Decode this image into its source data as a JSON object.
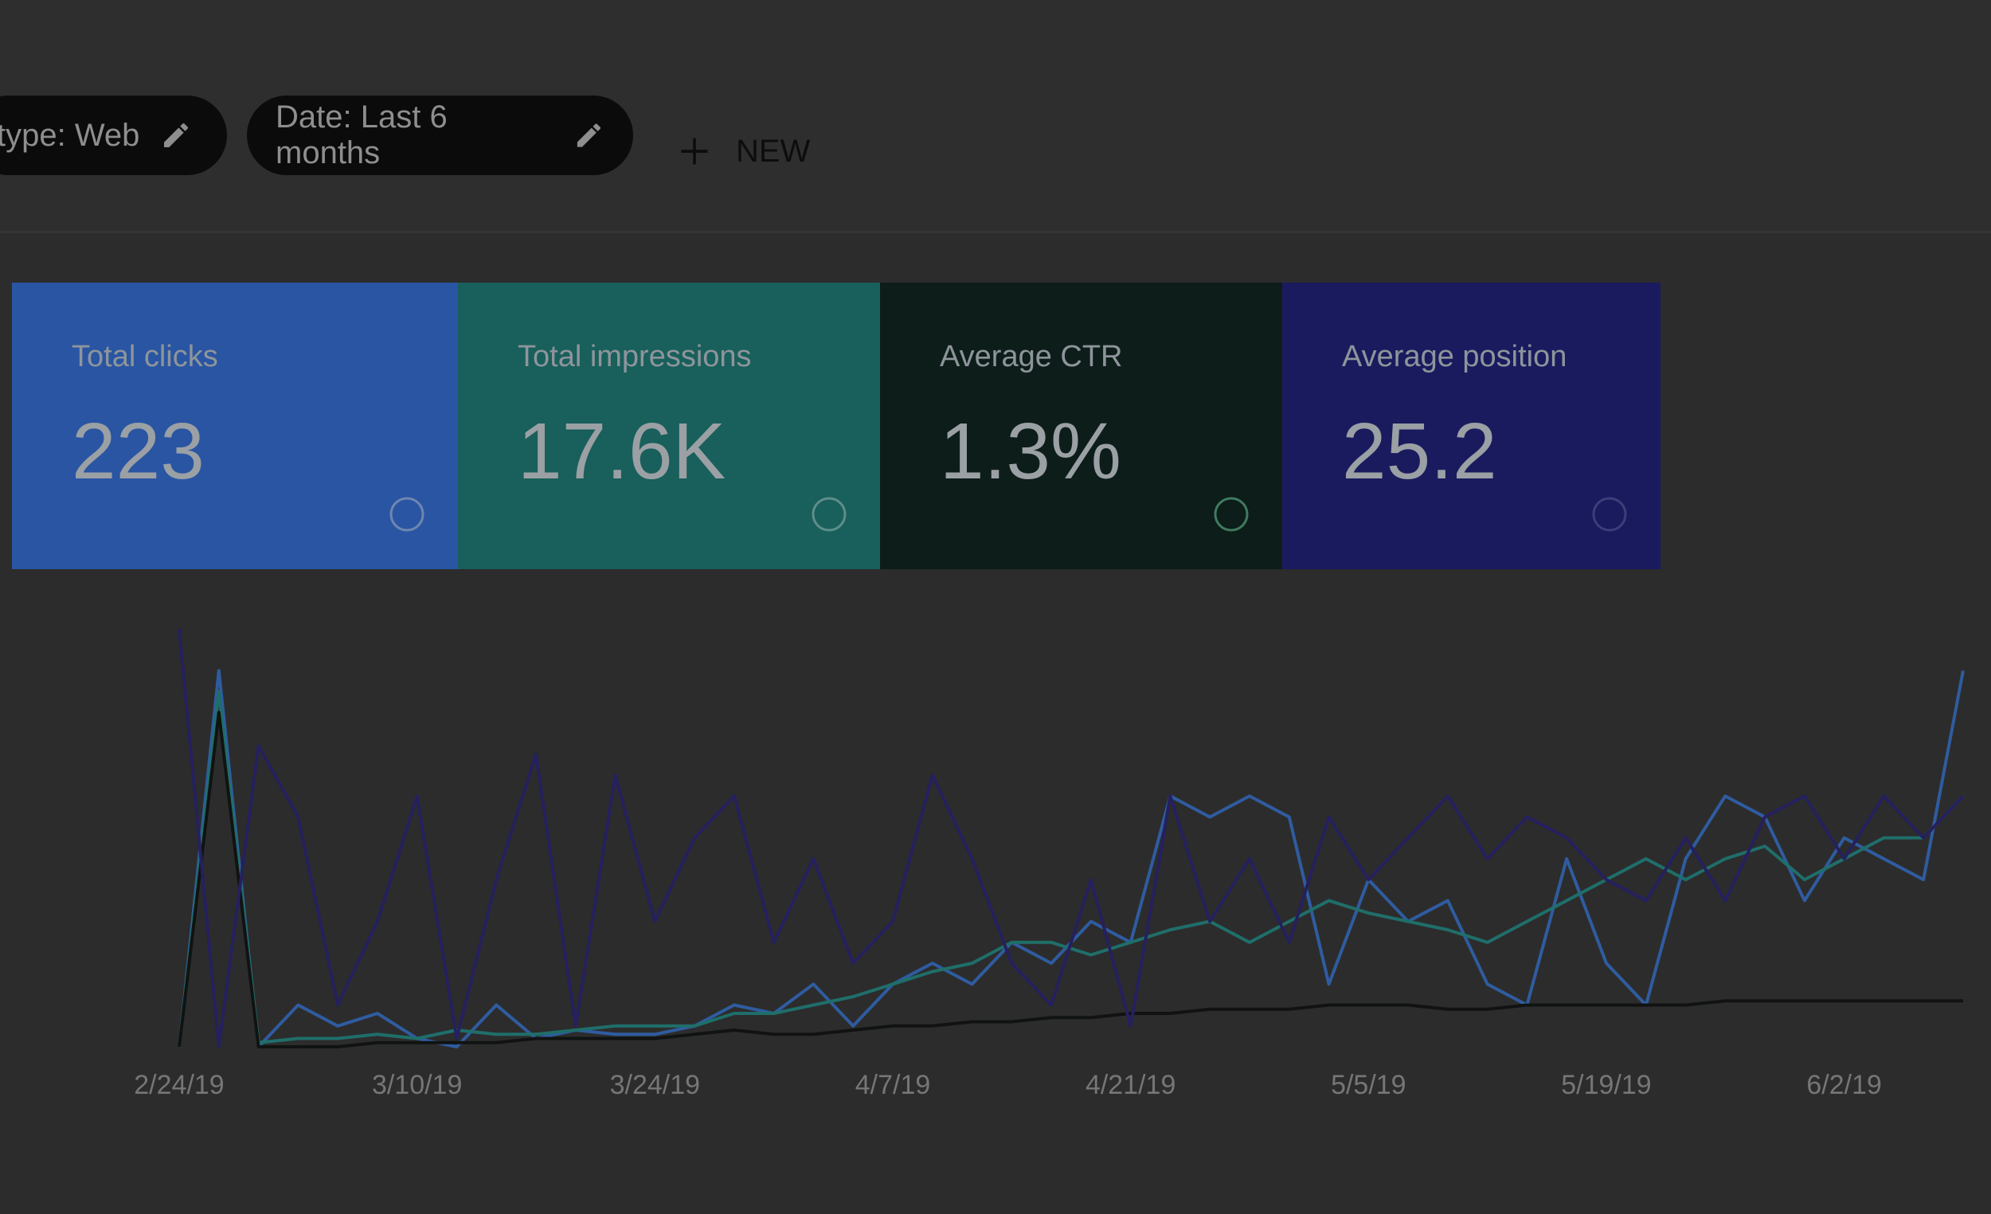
{
  "header": {
    "chips": [
      "type: Web",
      "Date: Last 6 months"
    ],
    "new_button": "NEW"
  },
  "cards": [
    {
      "label": "Total clicks",
      "value": "223"
    },
    {
      "label": "Total impressions",
      "value": "17.6K"
    },
    {
      "label": "Average CTR",
      "value": "1.3%"
    },
    {
      "label": "Average position",
      "value": "25.2"
    }
  ],
  "chart_data": {
    "type": "line",
    "categories": [
      "2/24/19",
      null,
      null,
      null,
      null,
      null,
      "3/10/19",
      null,
      null,
      null,
      null,
      null,
      "3/24/19",
      null,
      null,
      null,
      null,
      null,
      "4/7/19",
      null,
      null,
      null,
      null,
      null,
      "4/21/19",
      null,
      null,
      null,
      null,
      null,
      "5/5/19",
      null,
      null,
      null,
      null,
      null,
      "5/19/19",
      null,
      null,
      null,
      null,
      null,
      "6/2/19",
      null,
      null,
      null
    ],
    "ylim": [
      0,
      100
    ],
    "series": [
      {
        "color": "#2f5ca0",
        "values": [
          0,
          90,
          0,
          10,
          5,
          8,
          2,
          0,
          10,
          2,
          4,
          3,
          3,
          5,
          10,
          8,
          15,
          5,
          15,
          20,
          15,
          25,
          20,
          30,
          25,
          60,
          55,
          60,
          55,
          15,
          40,
          30,
          35,
          15,
          10,
          45,
          20,
          10,
          45,
          60,
          55,
          35,
          50,
          45,
          40,
          90
        ]
      },
      {
        "color": "#1f6e6a",
        "values": [
          0,
          85,
          1,
          2,
          2,
          3,
          2,
          4,
          3,
          3,
          4,
          5,
          5,
          5,
          8,
          8,
          10,
          12,
          15,
          18,
          20,
          25,
          25,
          22,
          25,
          28,
          30,
          25,
          30,
          35,
          32,
          30,
          28,
          25,
          30,
          35,
          40,
          45,
          40,
          45,
          48,
          40,
          45,
          50,
          50,
          60
        ]
      },
      {
        "color": "#101312",
        "values": [
          0,
          80,
          0,
          0,
          0,
          1,
          1,
          1,
          1,
          2,
          2,
          2,
          2,
          3,
          4,
          3,
          3,
          4,
          5,
          5,
          6,
          6,
          7,
          7,
          8,
          8,
          9,
          9,
          9,
          10,
          10,
          10,
          9,
          9,
          10,
          10,
          10,
          10,
          10,
          11,
          11,
          11,
          11,
          11,
          11,
          11
        ]
      },
      {
        "color": "#25205e",
        "values": [
          100,
          0,
          72,
          55,
          10,
          30,
          60,
          2,
          40,
          70,
          5,
          65,
          30,
          50,
          60,
          25,
          45,
          20,
          30,
          65,
          45,
          20,
          10,
          40,
          5,
          60,
          30,
          45,
          25,
          55,
          40,
          50,
          60,
          45,
          55,
          50,
          40,
          35,
          50,
          35,
          55,
          60,
          45,
          60,
          50,
          60
        ]
      }
    ]
  }
}
